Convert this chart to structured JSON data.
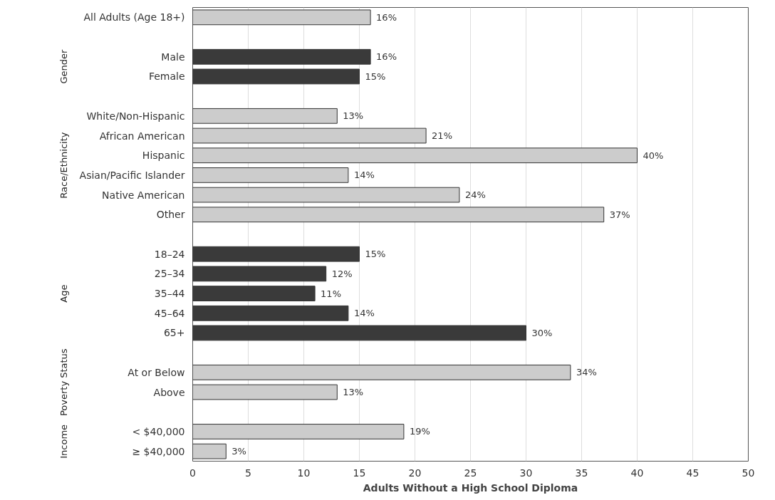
{
  "chart_data": {
    "type": "bar",
    "orientation": "horizontal",
    "xlabel": "Adults Without a High School Diploma",
    "categories": [
      "All Adults (Age 18+)",
      null,
      "Male",
      "Female",
      null,
      "White/Non-Hispanic",
      "African American",
      "Hispanic",
      "Asian/Pacific Islander",
      "Native American",
      "Other",
      null,
      "18–24",
      "25–34",
      "35–44",
      "45–64",
      "65+",
      null,
      "At or Below",
      "Above",
      null,
      "< $40,000",
      "≥ $40,000"
    ],
    "values": [
      16,
      null,
      16,
      15,
      null,
      13,
      21,
      40,
      14,
      24,
      37,
      null,
      15,
      12,
      11,
      14,
      30,
      null,
      34,
      13,
      null,
      19,
      3
    ],
    "value_labels": [
      "16%",
      null,
      "16%",
      "15%",
      null,
      "13%",
      "21%",
      "40%",
      "14%",
      "24%",
      "37%",
      null,
      "15%",
      "12%",
      "11%",
      "14%",
      "30%",
      null,
      "34%",
      "13%",
      null,
      "19%",
      "3%"
    ],
    "colors": [
      "#cccccc",
      null,
      "#3a3a3a",
      "#3a3a3a",
      null,
      "#cccccc",
      "#cccccc",
      "#cccccc",
      "#cccccc",
      "#cccccc",
      "#cccccc",
      null,
      "#3a3a3a",
      "#3a3a3a",
      "#3a3a3a",
      "#3a3a3a",
      "#3a3a3a",
      null,
      "#cccccc",
      "#cccccc",
      null,
      "#cccccc",
      "#cccccc"
    ],
    "xlim": [
      0,
      50
    ],
    "xticks": [
      0,
      5,
      10,
      15,
      20,
      25,
      30,
      35,
      40,
      45,
      50
    ],
    "grid": "x",
    "annotations": [
      "Gender",
      "Race/Ethnicity",
      "Age",
      "Poverty Status",
      "Income"
    ]
  }
}
